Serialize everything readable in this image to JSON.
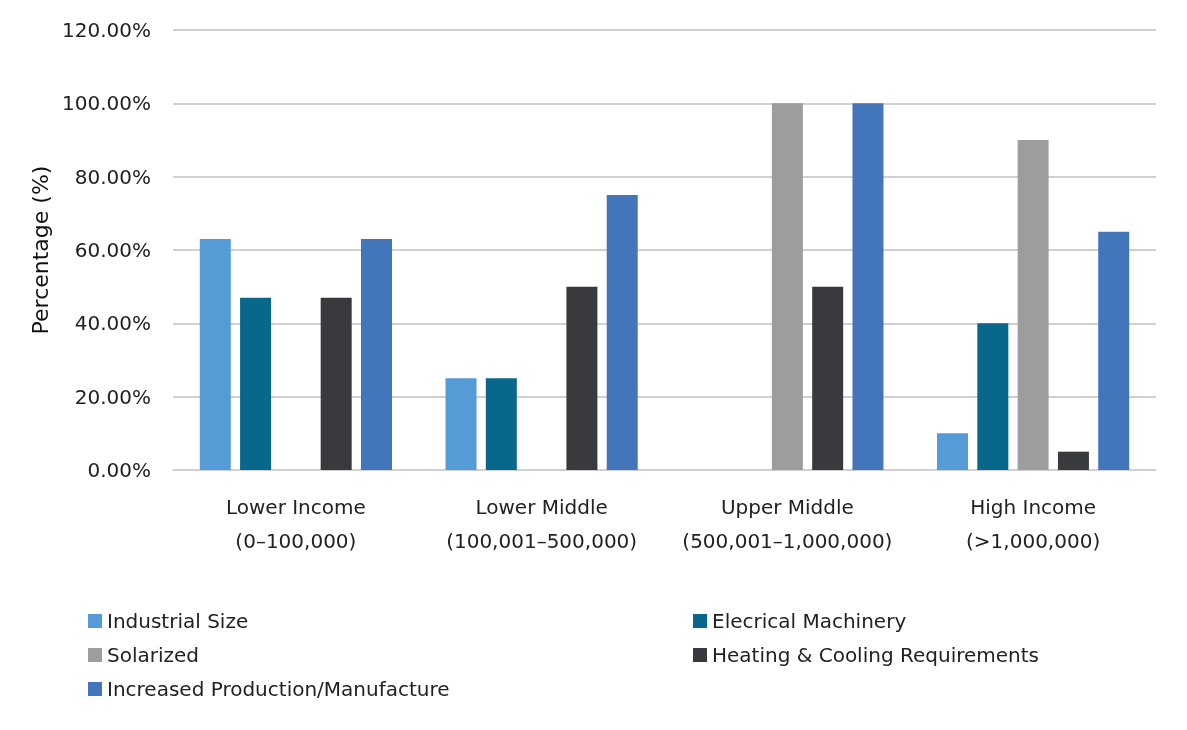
{
  "chart_data": {
    "type": "bar",
    "ylabel": "Percentage (%)",
    "categories": [
      "Lower Income (0–100,000)",
      "Lower Middle (100,001–500,000)",
      "Upper Middle (500,001–1,000,000)",
      "High Income (>1,000,000)"
    ],
    "series": [
      {
        "name": "Industrial Size",
        "color": "#559bd6",
        "values": [
          63,
          25,
          0,
          10
        ]
      },
      {
        "name": "Elecrical Machinery",
        "color": "#08678a",
        "values": [
          47,
          25,
          0,
          40
        ]
      },
      {
        "name": "Solarized",
        "color": "#9c9d9f",
        "values": [
          0,
          0,
          100,
          90
        ]
      },
      {
        "name": "Heating & Cooling Requirements",
        "color": "#393a3e",
        "values": [
          47,
          50,
          50,
          5
        ]
      },
      {
        "name": "Increased Production/Manufacture",
        "color": "#4375ba",
        "values": [
          63,
          75,
          100,
          65
        ]
      }
    ],
    "ylim": [
      0,
      120
    ],
    "yticks": [
      {
        "value": 0,
        "label": "0.00%"
      },
      {
        "value": 20,
        "label": "20.00%"
      },
      {
        "value": 40,
        "label": "40.00%"
      },
      {
        "value": 60,
        "label": "60.00%"
      },
      {
        "value": 80,
        "label": "80.00%"
      },
      {
        "value": 100,
        "label": "100.00%"
      },
      {
        "value": 120,
        "label": "120.00%"
      }
    ],
    "grid": "y",
    "legend": "bottom"
  }
}
